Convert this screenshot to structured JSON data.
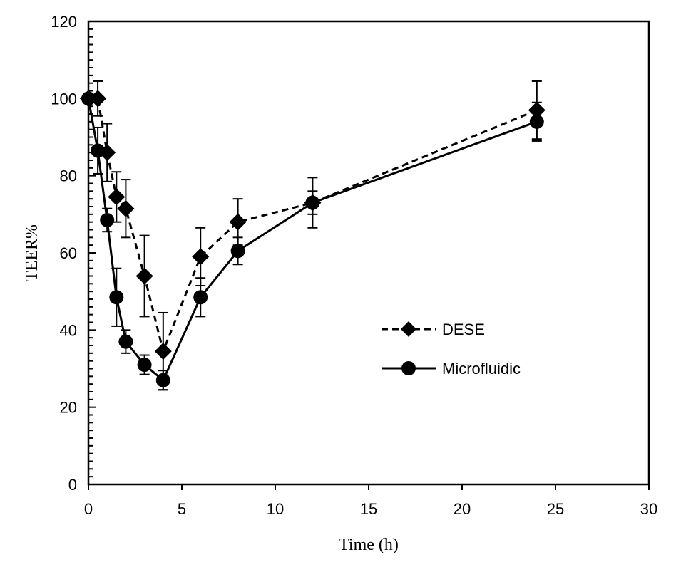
{
  "chart_data": {
    "type": "line",
    "xlabel": "Time (h)",
    "ylabel": "TEER%",
    "xlim": [
      0,
      30
    ],
    "ylim": [
      0,
      120
    ],
    "xticks": [
      0,
      5,
      10,
      15,
      20,
      25,
      30
    ],
    "yticks": [
      0,
      20,
      40,
      60,
      80,
      100,
      120
    ],
    "legend_position": "center-right",
    "series": [
      {
        "name": "DESE",
        "style": "dashed",
        "marker": "diamond",
        "x": [
          0,
          0.5,
          1,
          1.5,
          2,
          3,
          4,
          6,
          8,
          12,
          24
        ],
        "y": [
          100,
          100,
          86,
          74.5,
          71.5,
          54,
          34.5,
          59,
          68,
          73,
          97
        ],
        "err": [
          0,
          4.5,
          7.5,
          6.5,
          7.5,
          10.5,
          10,
          7.5,
          6,
          6.5,
          7.5
        ]
      },
      {
        "name": "Microfluidic",
        "style": "solid",
        "marker": "circle",
        "x": [
          0,
          0.5,
          1,
          1.5,
          2,
          3,
          4,
          6,
          8,
          12,
          24
        ],
        "y": [
          100,
          86.5,
          68.5,
          48.5,
          37,
          31,
          27,
          48.5,
          60.5,
          73,
          94
        ],
        "err": [
          0,
          6,
          3,
          7.5,
          3,
          2.5,
          2.5,
          5,
          3.5,
          3,
          5
        ]
      }
    ]
  }
}
